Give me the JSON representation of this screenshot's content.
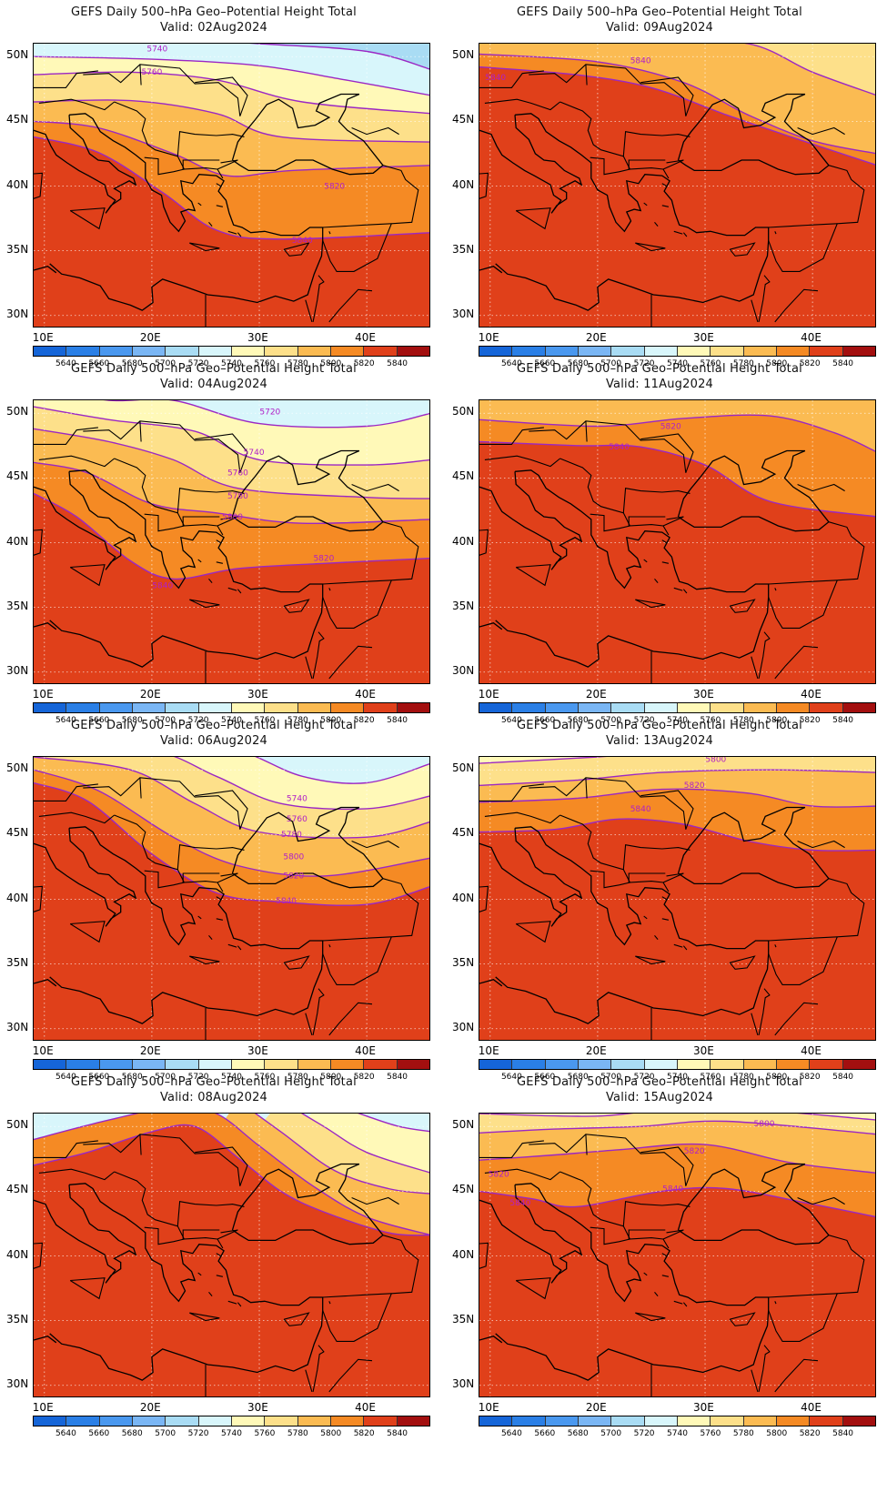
{
  "panels": [
    {
      "title": "GEFS Daily 500–hPa Geo–Potential Height Total",
      "valid": "Valid: 02Aug2024",
      "contours": [
        {
          "value": "5740"
        },
        {
          "value": "5760"
        },
        {
          "value": "5820"
        },
        {
          "value": "5840"
        }
      ]
    },
    {
      "title": "GEFS Daily 500–hPa Geo–Potential Height Total",
      "valid": "Valid: 09Aug2024",
      "contours": [
        {
          "value": "5840"
        },
        {
          "value": "5840"
        }
      ]
    },
    {
      "title": "GEFS Daily 500–hPa Geo–Potential Height Total",
      "valid": "Valid: 04Aug2024",
      "contours": [
        {
          "value": "5720"
        },
        {
          "value": "5740"
        },
        {
          "value": "5760"
        },
        {
          "value": "5780"
        },
        {
          "value": "5800"
        },
        {
          "value": "5820"
        },
        {
          "value": "5840"
        }
      ]
    },
    {
      "title": "GEFS Daily 500–hPa Geo–Potential Height Total",
      "valid": "Valid: 11Aug2024",
      "contours": [
        {
          "value": "5820"
        },
        {
          "value": "5840"
        }
      ]
    },
    {
      "title": "GEFS Daily 500–hPa Geo–Potential Height Total",
      "valid": "Valid: 06Aug2024",
      "contours": [
        {
          "value": "5740"
        },
        {
          "value": "5760"
        },
        {
          "value": "5780"
        },
        {
          "value": "5800"
        },
        {
          "value": "5820"
        },
        {
          "value": "5840"
        }
      ]
    },
    {
      "title": "GEFS Daily 500–hPa Geo–Potential Height Total",
      "valid": "Valid: 13Aug2024",
      "contours": [
        {
          "value": "5800"
        },
        {
          "value": "5820"
        },
        {
          "value": "5840"
        }
      ]
    },
    {
      "title": "GEFS Daily 500–hPa Geo–Potential Height Total",
      "valid": "Valid: 08Aug2024",
      "contours": []
    },
    {
      "title": "GEFS Daily 500–hPa Geo–Potential Height Total",
      "valid": "Valid: 15Aug2024",
      "contours": [
        {
          "value": "5800"
        },
        {
          "value": "5820"
        },
        {
          "value": "5820"
        },
        {
          "value": "5840"
        },
        {
          "value": "5840"
        }
      ]
    }
  ],
  "lat_labels": [
    "50N",
    "45N",
    "40N",
    "35N",
    "30N"
  ],
  "lon_labels": [
    "10E",
    "20E",
    "30E",
    "40E"
  ],
  "colorbar": {
    "labels": [
      "5640",
      "5660",
      "5680",
      "5700",
      "5720",
      "5740",
      "5760",
      "5780",
      "5800",
      "5820",
      "5840"
    ],
    "colors": [
      "#1565d8",
      "#2a7fe6",
      "#4a98ef",
      "#7ab6f4",
      "#a9dcf4",
      "#d8f6fb",
      "#fff9b8",
      "#fde08a",
      "#fbbb52",
      "#f58a24",
      "#e0401a",
      "#a30f0f"
    ]
  },
  "colors": {
    "contour": "#9b27c4",
    "contour_label": "#b01fc7",
    "border": "#000000",
    "grid": "#ffffff"
  }
}
